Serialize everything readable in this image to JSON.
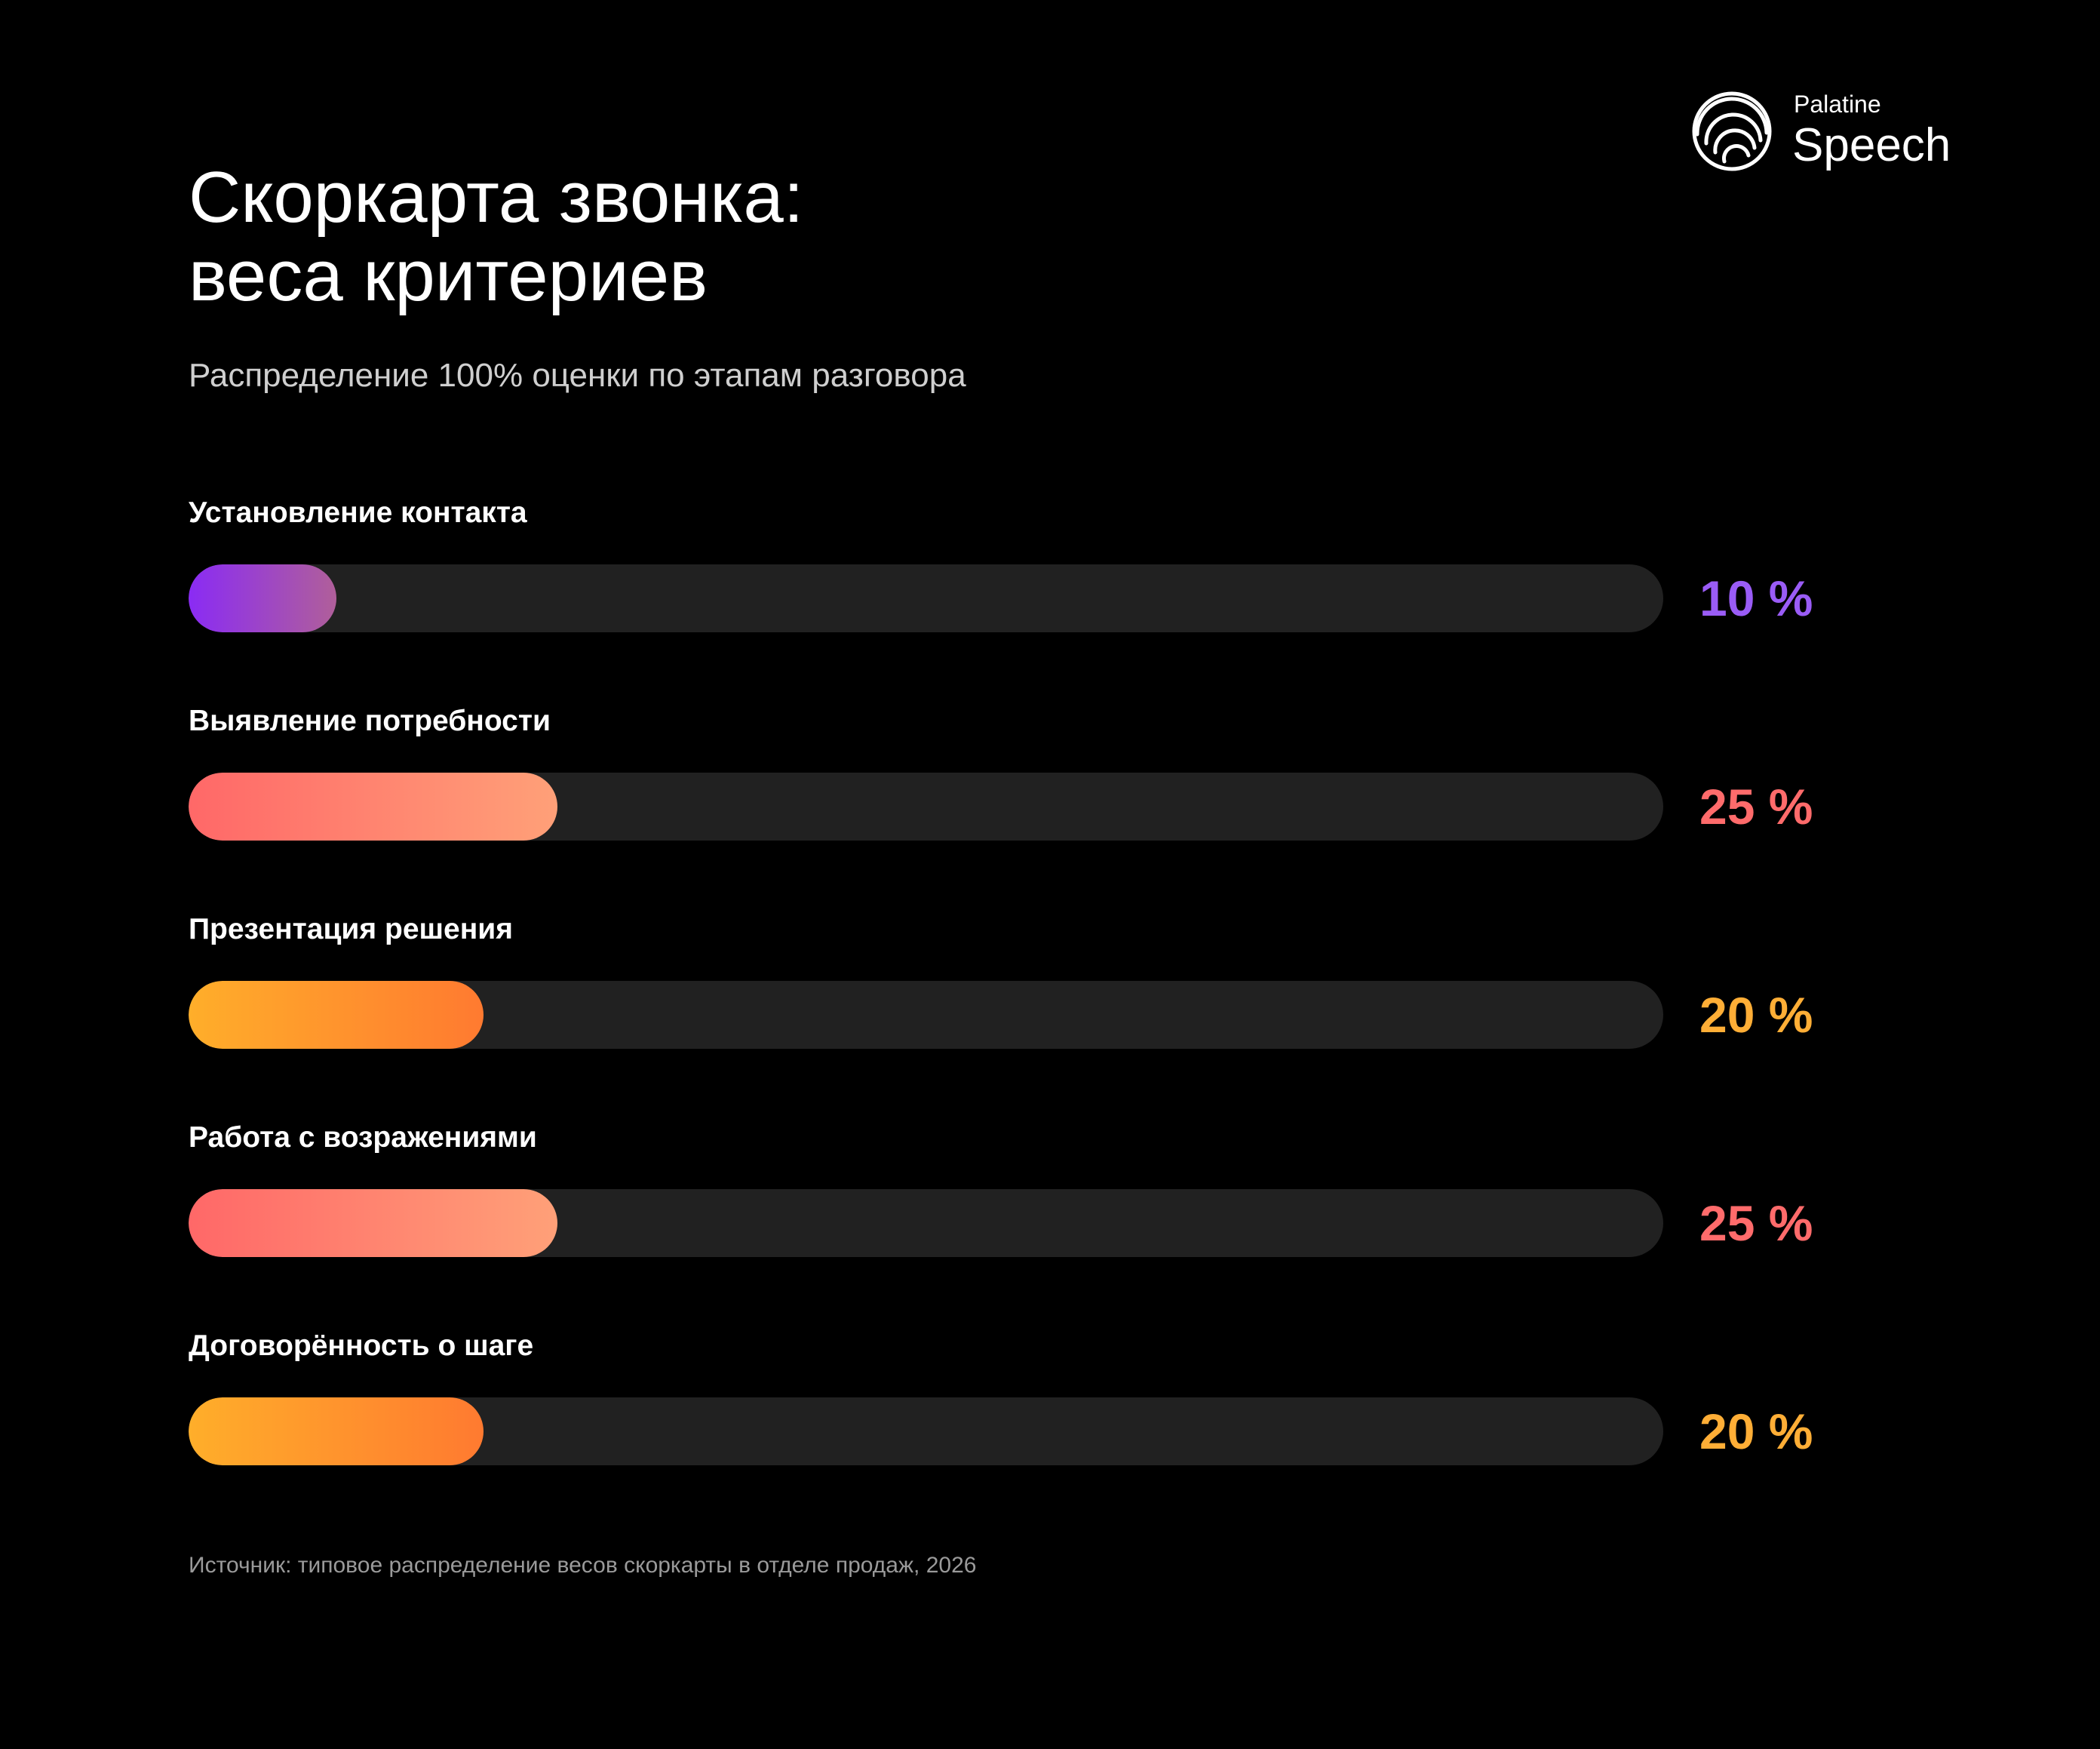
{
  "brand": {
    "small": "Palatine",
    "name": "Speech"
  },
  "title_lines": [
    "Скоркарта звонка:",
    "веса критериев"
  ],
  "subtitle": "Распределение 100% оценки по этапам разговора",
  "chart_data": {
    "type": "bar",
    "orientation": "horizontal",
    "title": "Скоркарта звонка: веса критериев",
    "subtitle": "Распределение 100% оценки по этапам разговора",
    "xlim": [
      0,
      100
    ],
    "grid": false,
    "categories": [
      "Установление контакта",
      "Выявление потребности",
      "Презентация решения",
      "Работа с возражениями",
      "Договорённость о шаге"
    ],
    "values": [
      10,
      25,
      20,
      25,
      20
    ],
    "value_labels": [
      "10 %",
      "25 %",
      "20 %",
      "25 %",
      "20 %"
    ],
    "colors": [
      {
        "from": "#8a2bf4",
        "to": "#b05f9a",
        "label": "#9a5cf6"
      },
      {
        "from": "#ff6868",
        "to": "#ffa078",
        "label": "#ff6b6b"
      },
      {
        "from": "#ffae2a",
        "to": "#ff7a30",
        "label": "#ffae36"
      },
      {
        "from": "#ff6868",
        "to": "#ffa078",
        "label": "#ff6b6b"
      },
      {
        "from": "#ffae2a",
        "to": "#ff7a30",
        "label": "#ffae36"
      }
    ],
    "track_color": "#212121",
    "source": "Источник: типовое распределение весов скоркарты в отделе продаж, 2026"
  }
}
